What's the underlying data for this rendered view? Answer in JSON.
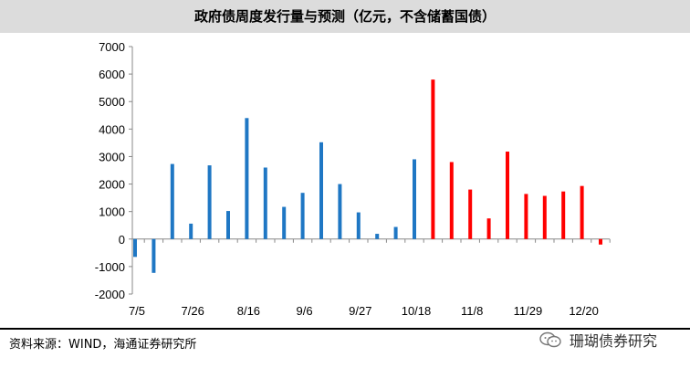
{
  "source_note": "资料来源：WIND，海通证券研究所",
  "watermark": {
    "text": "珊瑚债券研究",
    "icon": "wechat-icon"
  },
  "colors": {
    "actual": "#1f77c4",
    "forecast": "#ff0000",
    "title_bg": "#dcdcdc"
  },
  "chart_data": {
    "type": "bar",
    "title": "政府债周度发行量与预测（亿元，不含储蓄国债）",
    "xlabel": "",
    "ylabel": "",
    "ylim": [
      -2000,
      7000
    ],
    "yticks": [
      -2000,
      -1000,
      0,
      1000,
      2000,
      3000,
      4000,
      5000,
      6000,
      7000
    ],
    "xtick_labels": [
      "7/5",
      "7/26",
      "8/16",
      "9/6",
      "9/27",
      "10/18",
      "11/8",
      "11/29",
      "12/20"
    ],
    "xtick_label_every": 3,
    "grid": false,
    "legend": "none",
    "categories": [
      "7/5",
      "7/12",
      "7/19",
      "7/26",
      "8/2",
      "8/9",
      "8/16",
      "8/23",
      "8/30",
      "9/6",
      "9/13",
      "9/20",
      "9/27",
      "10/4",
      "10/11",
      "10/18",
      "10/25",
      "11/1",
      "11/8",
      "11/15",
      "11/22",
      "11/29",
      "12/6",
      "12/13",
      "12/20",
      "12/27"
    ],
    "series": [
      {
        "kind": "actual",
        "values": [
          -650,
          -1230,
          2730,
          560,
          2680,
          1020,
          4400,
          2600,
          1170,
          1680,
          3520,
          2000,
          970,
          190,
          440,
          2900,
          null,
          null,
          null,
          null,
          null,
          null,
          null,
          null,
          null,
          null
        ]
      },
      {
        "kind": "forecast",
        "values": [
          null,
          null,
          null,
          null,
          null,
          null,
          null,
          null,
          null,
          null,
          null,
          null,
          null,
          null,
          null,
          null,
          5800,
          2800,
          1800,
          750,
          3180,
          1640,
          1570,
          1730,
          1930,
          -200
        ]
      }
    ]
  }
}
